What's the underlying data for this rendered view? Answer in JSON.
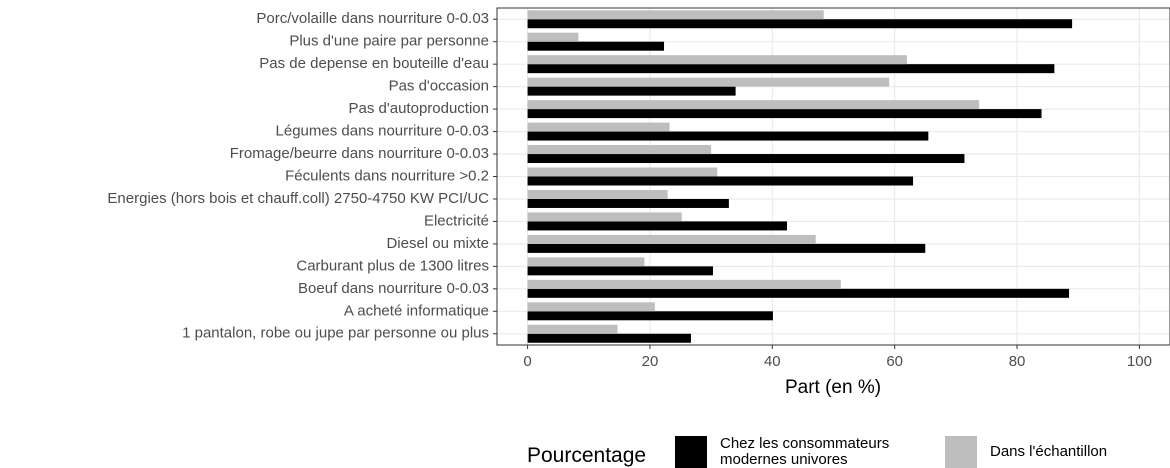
{
  "chart_data": {
    "type": "bar",
    "orientation": "horizontal",
    "xlabel": "Part (en %)",
    "legend_title": "Pourcentage",
    "categories": [
      "Porc/volaille dans nourriture 0-0.03",
      "Plus d'une paire par personne",
      "Pas de depense en bouteille d'eau",
      "Pas d'occasion",
      "Pas d'autoproduction",
      "Légumes dans nourriture 0-0.03",
      "Fromage/beurre dans nourriture 0-0.03",
      "Féculents dans nourriture >0.2",
      "Energies (hors bois et chauff.coll) 2750-4750 KW PCI/UC",
      "Electricité",
      "Diesel ou mixte",
      "Carburant plus de 1300 litres",
      "Boeuf dans nourriture 0-0.03",
      "A acheté informatique",
      "1 pantalon, robe ou jupe par personne ou plus"
    ],
    "series": [
      {
        "name": "Chez les consommateurs modernes univores",
        "color": "#000000",
        "values": [
          89.0,
          22.3,
          86.1,
          34.0,
          84.0,
          65.5,
          71.4,
          63.0,
          32.9,
          42.4,
          65.0,
          30.3,
          88.5,
          40.1,
          26.7
        ]
      },
      {
        "name": "Dans l'échantillon",
        "color": "#bebebe",
        "values": [
          48.4,
          8.3,
          62.0,
          59.1,
          73.8,
          23.2,
          30.0,
          31.0,
          22.9,
          25.2,
          47.1,
          19.1,
          51.2,
          20.8,
          14.7
        ]
      }
    ],
    "xlim": [
      -5,
      105
    ],
    "xticks": [
      0,
      20,
      40,
      60,
      80,
      100
    ],
    "grid": true
  }
}
